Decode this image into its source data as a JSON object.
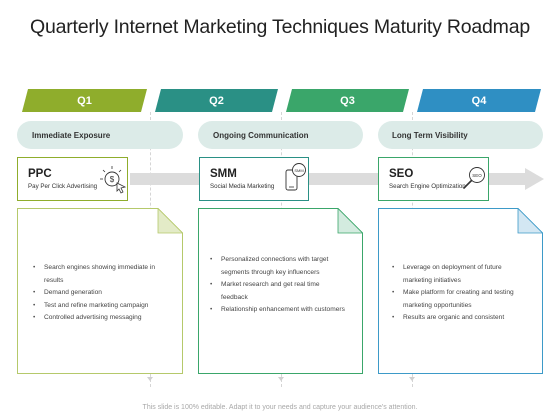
{
  "title": "Quarterly Internet Marketing Techniques Maturity Roadmap",
  "quarters": [
    {
      "label": "Q1",
      "color": "#8fad2c"
    },
    {
      "label": "Q2",
      "color": "#2a9085"
    },
    {
      "label": "Q3",
      "color": "#3aa66a"
    },
    {
      "label": "Q4",
      "color": "#2f8fc3"
    }
  ],
  "phases": [
    "Immediate Exposure",
    "Ongoing Communication",
    "Long Term Visibility"
  ],
  "cards": [
    {
      "title": "PPC",
      "subtitle": "Pay Per Click Advertising",
      "icon": "pay-per-click-icon",
      "border": "#8fad2c"
    },
    {
      "title": "SMM",
      "subtitle": "Social Media Marketing",
      "icon": "social-media-phone-icon",
      "border": "#2a9085"
    },
    {
      "title": "SEO",
      "subtitle": "Search Engine Optimization",
      "icon": "seo-magnifier-icon",
      "border": "#3aa66a"
    }
  ],
  "details": [
    {
      "color": "#b5c96b",
      "items": [
        "Search engines showing immediate in results",
        "Demand generation",
        "Test and refine marketing campaign",
        "Controlled advertising messaging"
      ]
    },
    {
      "color": "#3aa66a",
      "items": [
        "Personalized connections with target segments through key influencers",
        "Market research and get real time feedback",
        "Relationship enhancement with customers"
      ]
    },
    {
      "color": "#3d9ac8",
      "items": [
        "Leverage on deployment of future marketing initiatives",
        "Make platform for creating and testing marketing opportunities",
        "Results are organic and consistent"
      ]
    }
  ],
  "footer": "This slide is 100% editable. Adapt it to your needs and capture your audience's attention."
}
